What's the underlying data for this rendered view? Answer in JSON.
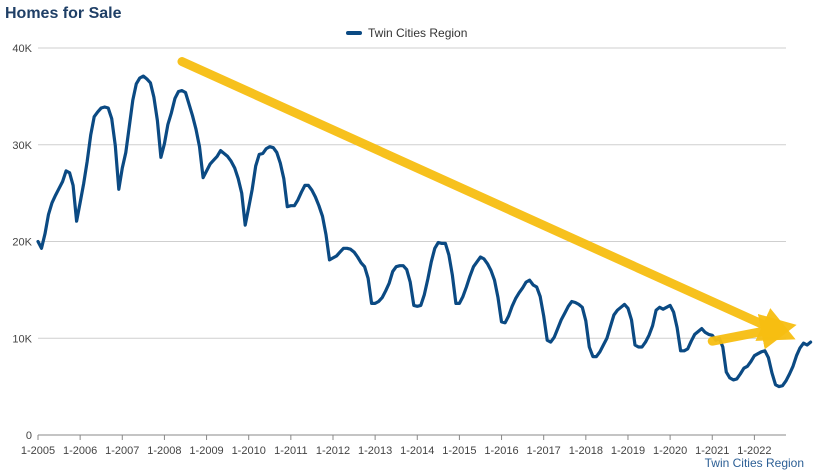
{
  "title": "Homes for Sale",
  "source_label": "Twin Cities Region",
  "colors": {
    "series": "#0b4a83",
    "arrow": "#f7be11",
    "grid": "#cfcfcf",
    "title": "#1f3f66"
  },
  "chart_data": {
    "type": "line",
    "title": "Homes for Sale",
    "xlabel": "",
    "ylabel": "",
    "ylim": [
      0,
      40000
    ],
    "yticks": [
      0,
      10000,
      20000,
      30000,
      40000
    ],
    "ytick_labels": [
      "0",
      "10K",
      "20K",
      "30K",
      "40K"
    ],
    "xtick_labels": [
      "1-2005",
      "1-2006",
      "1-2007",
      "1-2008",
      "1-2009",
      "1-2010",
      "1-2011",
      "1-2012",
      "1-2013",
      "1-2014",
      "1-2015",
      "1-2016",
      "1-2017",
      "1-2018",
      "1-2019",
      "1-2020",
      "1-2021",
      "1-2022"
    ],
    "grid": "horizontal",
    "legend_position": "top-center",
    "x_start": "1-2005",
    "x_end": "9-2022",
    "series": [
      {
        "name": "Twin Cities Region",
        "color": "#0b4a83",
        "values": [
          20000,
          19300,
          20800,
          22800,
          24000,
          24800,
          25500,
          26200,
          27300,
          27100,
          25800,
          22100,
          24000,
          26000,
          28300,
          31000,
          32900,
          33400,
          33800,
          33900,
          33800,
          32700,
          29900,
          25400,
          27600,
          29200,
          31900,
          34600,
          36300,
          36900,
          37100,
          36800,
          36400,
          34900,
          32500,
          28700,
          30100,
          32100,
          33300,
          34800,
          35500,
          35600,
          35400,
          34200,
          33000,
          31600,
          29800,
          26600,
          27300,
          28000,
          28400,
          28800,
          29400,
          29100,
          28800,
          28300,
          27600,
          26500,
          25000,
          21700,
          23500,
          25400,
          27800,
          29000,
          29100,
          29600,
          29800,
          29700,
          29200,
          28100,
          26500,
          23600,
          23700,
          23700,
          24300,
          25100,
          25800,
          25800,
          25300,
          24600,
          23700,
          22600,
          20700,
          18100,
          18300,
          18500,
          18900,
          19300,
          19300,
          19200,
          18900,
          18400,
          17800,
          17400,
          16200,
          13600,
          13600,
          13800,
          14200,
          14900,
          15700,
          16900,
          17400,
          17500,
          17500,
          17100,
          15800,
          13400,
          13300,
          13400,
          14500,
          16100,
          17900,
          19300,
          19900,
          19800,
          19800,
          18600,
          16500,
          13600,
          13600,
          14300,
          15300,
          16400,
          17400,
          17900,
          18400,
          18200,
          17700,
          17000,
          16000,
          14200,
          11700,
          11600,
          12300,
          13300,
          14100,
          14700,
          15200,
          15800,
          16000,
          15500,
          15300,
          14300,
          12300,
          9800,
          9600,
          10100,
          11000,
          11900,
          12600,
          13300,
          13800,
          13700,
          13500,
          13200,
          11800,
          9100,
          8100,
          8100,
          8600,
          9300,
          10000,
          11200,
          12400,
          12900,
          13200,
          13500,
          13100,
          11900,
          9300,
          9100,
          9100,
          9600,
          10300,
          11300,
          12900,
          13200,
          13000,
          13200,
          13400,
          12700,
          11100,
          8700,
          8700,
          8900,
          9700,
          10400,
          10700,
          11000,
          10600,
          10400,
          10300,
          9800,
          10000,
          9100,
          6500,
          5900,
          5700,
          5800,
          6300,
          6900,
          7100,
          7600,
          8200,
          8400,
          8600,
          8700,
          8000,
          6400,
          5200,
          5000,
          5100,
          5600,
          6300,
          7100,
          8200,
          9000,
          9500,
          9300,
          9600
        ]
      }
    ],
    "annotations": [
      {
        "type": "arrow",
        "from": [
          "6-2008",
          38600
        ],
        "to": [
          "9-2022",
          10500
        ],
        "color": "#f7be11"
      },
      {
        "type": "arrow",
        "from": [
          "1-2021",
          9700
        ],
        "to": [
          "9-2022",
          11100
        ],
        "color": "#f7be11"
      }
    ]
  }
}
